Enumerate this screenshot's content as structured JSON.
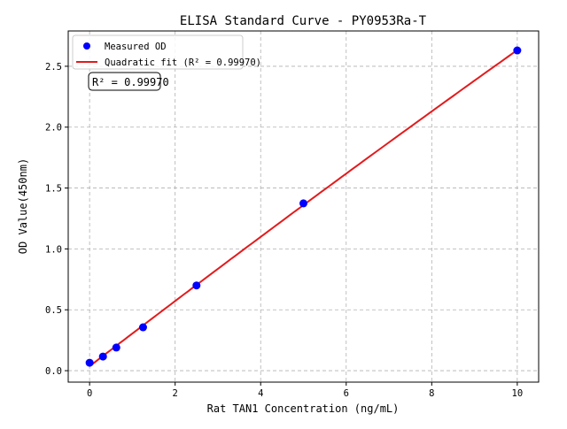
{
  "chart_data": {
    "type": "scatter",
    "title": "ELISA Standard Curve - PY0953Ra-T",
    "xlabel": "Rat TAN1 Concentration (ng/mL)",
    "ylabel": "OD Value(450nm)",
    "xlim": [
      -0.5,
      10.5
    ],
    "ylim": [
      -0.094,
      2.79
    ],
    "xticks": [
      0,
      2,
      4,
      6,
      8,
      10
    ],
    "xtick_labels": [
      "0",
      "2",
      "4",
      "6",
      "8",
      "10"
    ],
    "yticks": [
      0.0,
      0.5,
      1.0,
      1.5,
      2.0,
      2.5
    ],
    "ytick_labels": [
      "0.0",
      "0.5",
      "1.0",
      "1.5",
      "2.0",
      "2.5"
    ],
    "grid": true,
    "legend_position": "top-left",
    "series": [
      {
        "name": "Measured OD",
        "kind": "scatter",
        "color": "#0000ff",
        "x": [
          0,
          0.3125,
          0.625,
          1.25,
          2.5,
          5,
          10
        ],
        "y": [
          0.065,
          0.116,
          0.19,
          0.356,
          0.7,
          1.374,
          2.63
        ]
      },
      {
        "name": "Quadratic fit (R² = 0.99970)",
        "kind": "line",
        "color": "#e41a1c",
        "fit": "quadratic"
      }
    ],
    "annotation": "R² = 0.99970"
  }
}
